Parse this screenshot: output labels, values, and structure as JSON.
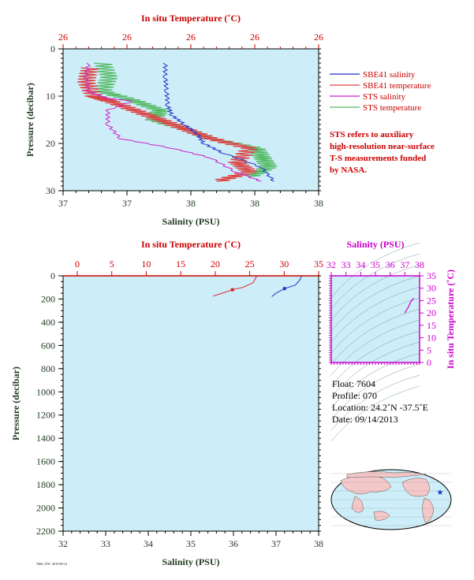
{
  "colors": {
    "plot_bg": "#cdeef8",
    "red": "#cc0000",
    "magenta": "#cc00cc",
    "green_dark": "#1f3a1f",
    "sbe41_salinity": "#2233cc",
    "sbe41_temperature": "#dd4444",
    "sts_salinity": "#cc22cc",
    "sts_temperature": "#55bb66",
    "land": "#f4c8c8",
    "ocean": "#cdeef8"
  },
  "top_chart": {
    "top_axis_title": "In situ Temperature (˚C)",
    "top_tick_labels": [
      "26",
      "26",
      "26",
      "26",
      "26"
    ],
    "bottom_axis_title": "Salinity (PSU)",
    "bottom_tick_labels": [
      "37",
      "37",
      "38",
      "38",
      "38"
    ],
    "left_axis_title": "Pressure (decibar)",
    "left_tick_labels": [
      "0",
      "10",
      "20",
      "30"
    ]
  },
  "legend": {
    "items": [
      "SBE41 salinity",
      "SBE41 temperature",
      "STS salinity",
      "STS temperature"
    ]
  },
  "note": {
    "lines": [
      "STS refers to auxiliary",
      "high-resolution near-surface",
      "T-S measurements funded",
      "by NASA."
    ]
  },
  "bottom_chart": {
    "top_axis_title": "In situ Temperature (˚C)",
    "top_tick_labels": [
      "0",
      "5",
      "10",
      "15",
      "20",
      "25",
      "30",
      "35"
    ],
    "bottom_axis_title": "Salinity (PSU)",
    "bottom_tick_labels": [
      "32",
      "33",
      "34",
      "35",
      "36",
      "37",
      "38"
    ],
    "left_axis_title": "Pressure (decibar)",
    "left_tick_labels": [
      "0",
      "200",
      "400",
      "600",
      "800",
      "1000",
      "1200",
      "1400",
      "1600",
      "1800",
      "2000",
      "2200"
    ]
  },
  "ts_chart": {
    "top_axis_title": "Salinity (PSU)",
    "top_tick_labels": [
      "32",
      "33",
      "34",
      "35",
      "36",
      "37",
      "38"
    ],
    "right_axis_title": "In situ Temperature (˚C)",
    "right_tick_labels": [
      "0",
      "5",
      "10",
      "15",
      "20",
      "25",
      "30",
      "35"
    ]
  },
  "info": {
    "float": "Float:  7604",
    "profile": "Profile:  070",
    "location": "Location:  24.2˚N  -37.5˚E",
    "date": "Date:  09/14/2013"
  },
  "footer_text": "7604 / 070 / 2013-09-14",
  "chart_data": [
    {
      "type": "line",
      "name": "near-surface profile",
      "x_axis": "Salinity (PSU)",
      "y_axis": "Pressure (decibar)",
      "ylim": [
        0,
        30
      ],
      "series": [
        {
          "name": "SBE41 salinity",
          "x": [
            37.55,
            37.55,
            37.56,
            37.57,
            37.6,
            37.7,
            37.8,
            37.85,
            38.0,
            38.3,
            38.4
          ],
          "y": [
            3,
            6,
            9,
            12,
            14,
            16,
            18,
            20,
            22,
            25,
            28
          ]
        },
        {
          "name": "SBE41 temperature",
          "x": [
            36.95,
            36.92,
            36.98,
            37.1,
            37.3,
            37.5,
            37.7,
            37.9,
            38.2,
            38.1,
            38.2,
            37.95
          ],
          "y": [
            4,
            7,
            10,
            11,
            13,
            15,
            17,
            19,
            21,
            24,
            26,
            28
          ]
        },
        {
          "name": "STS salinity",
          "x": [
            36.95,
            36.93,
            36.95,
            37.1,
            37.3,
            37.1,
            37.1,
            37.2,
            37.6,
            37.9,
            38.1,
            38.3
          ],
          "y": [
            3,
            6,
            9,
            10.5,
            11,
            13,
            16,
            19,
            21,
            23,
            26,
            28
          ]
        },
        {
          "name": "STS temperature",
          "x": [
            37.05,
            37.1,
            37.05,
            37.3,
            37.5,
            37.45,
            37.7,
            37.9,
            38.25,
            38.3,
            38.35,
            38.2
          ],
          "y": [
            3,
            6,
            9,
            11,
            13,
            15,
            17,
            19,
            21,
            23,
            25,
            27
          ]
        }
      ]
    },
    {
      "type": "line",
      "name": "full-depth profile",
      "x_axis": "Salinity (PSU)",
      "y_axis": "Pressure (decibar)",
      "xlim": [
        32,
        38
      ],
      "ylim": [
        0,
        2200
      ],
      "series": [
        {
          "name": "salinity",
          "x": [
            37.6,
            37.55,
            37.45,
            37.2,
            37.0,
            36.9
          ],
          "y": [
            5,
            40,
            80,
            110,
            150,
            180
          ]
        },
        {
          "name": "temperature",
          "x_temperature": [
            26.0,
            25.5,
            24.0,
            22.5,
            21.0,
            19.7
          ],
          "y": [
            5,
            60,
            100,
            120,
            150,
            175
          ]
        }
      ]
    },
    {
      "type": "line",
      "name": "T-S diagram",
      "x_axis": "Salinity (PSU)",
      "y_axis": "In situ Temperature (˚C)",
      "xlim": [
        32,
        38
      ],
      "ylim": [
        0,
        35
      ],
      "series": [
        {
          "name": "T-S",
          "x": [
            37.0,
            37.2,
            37.4,
            37.6
          ],
          "y": [
            20,
            22,
            24.5,
            26
          ]
        }
      ]
    }
  ]
}
